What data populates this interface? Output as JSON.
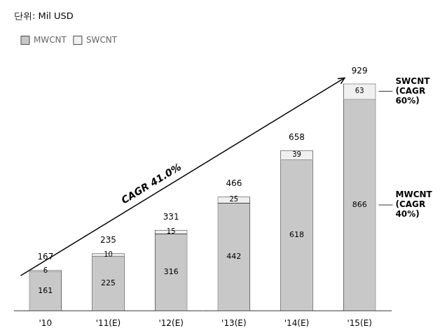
{
  "chart_data": {
    "type": "bar",
    "title": "단위: Mil USD",
    "categories": [
      "'10",
      "'11(E)",
      "'12(E)",
      "'13(E)",
      "'14(E)",
      "'15(E)"
    ],
    "series": [
      {
        "name": "MWCNT",
        "color": "#c8c8c8",
        "values": [
          161,
          225,
          316,
          442,
          618,
          866
        ]
      },
      {
        "name": "SWCNT",
        "color": "#f0f0f0",
        "values": [
          6,
          10,
          15,
          25,
          39,
          63
        ]
      }
    ],
    "totals": [
      167,
      235,
      331,
      466,
      658,
      929
    ],
    "stacked": true,
    "data_labels": true,
    "ylim": [
      0,
      1060
    ],
    "grid": false,
    "legend": "top",
    "tick_labels": "x",
    "annotations": [
      {
        "text": "CAGR 41.0%"
      },
      {
        "text": "SWCNT\n(CAGR\n60%)",
        "series": "SWCNT"
      },
      {
        "text": "MWCNT\n(CAGR\n40%)",
        "series": "MWCNT"
      }
    ]
  }
}
